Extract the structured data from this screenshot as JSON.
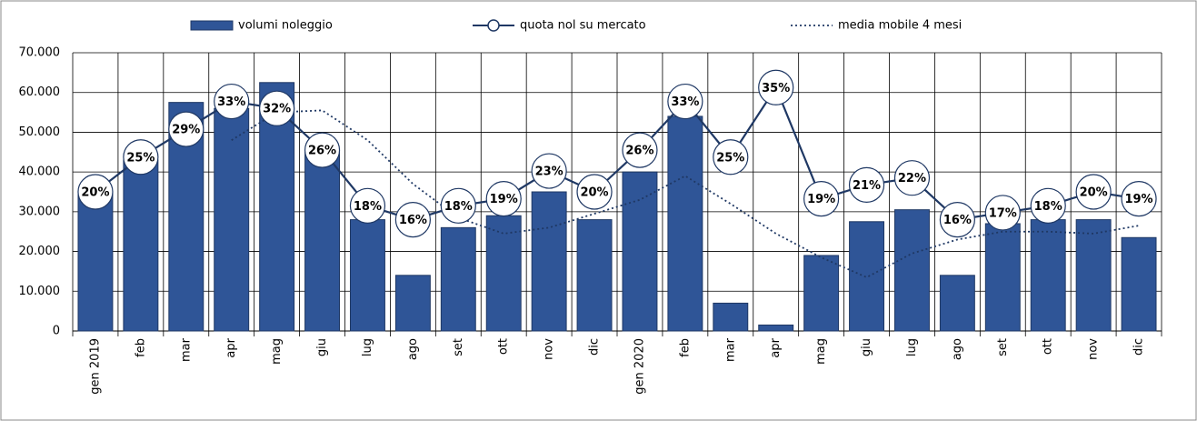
{
  "chart_data": {
    "type": "bar-line",
    "categories": [
      "gen 2019",
      "feb",
      "mar",
      "apr",
      "mag",
      "giu",
      "lug",
      "ago",
      "set",
      "ott",
      "nov",
      "dic",
      "gen 2020",
      "feb",
      "mar",
      "apr",
      "mag",
      "giu",
      "lug",
      "ago",
      "set",
      "ott",
      "nov",
      "dic"
    ],
    "series": [
      {
        "name": "volumi noleggio",
        "type": "bar",
        "color": "#2f5597",
        "values": [
          35000,
          43000,
          57500,
          56000,
          62500,
          45000,
          28000,
          14000,
          26000,
          29000,
          35000,
          28000,
          40000,
          54000,
          7000,
          1500,
          19000,
          27500,
          30500,
          14000,
          27000,
          28000,
          28000,
          23500
        ]
      },
      {
        "name": "quota nol su mercato",
        "type": "line",
        "axis": "y2",
        "color": "#1f3864",
        "values": [
          20,
          25,
          29,
          33,
          32,
          26,
          18,
          16,
          18,
          19,
          23,
          20,
          26,
          33,
          25,
          35,
          19,
          21,
          22,
          16,
          17,
          18,
          20,
          19
        ],
        "value_labels": [
          "20%",
          "25%",
          "29%",
          "33%",
          "32%",
          "26%",
          "18%",
          "16%",
          "18%",
          "19%",
          "23%",
          "20%",
          "26%",
          "33%",
          "25%",
          "35%",
          "19%",
          "21%",
          "22%",
          "16%",
          "17%",
          "18%",
          "20%",
          "19%"
        ]
      },
      {
        "name": "media mobile 4 mesi",
        "type": "dotted",
        "color": "#1f3864",
        "values": [
          null,
          null,
          null,
          48000,
          55000,
          55500,
          48000,
          37000,
          28500,
          24500,
          26000,
          29500,
          33000,
          39000,
          32000,
          24500,
          18500,
          13500,
          19500,
          23000,
          25000,
          25000,
          24500,
          26500
        ]
      }
    ],
    "ylim": [
      0,
      70000
    ],
    "yticks": [
      0,
      {
        "value": 10000,
        "label": "10.000"
      },
      {
        "value": 20000,
        "label": "20.000"
      },
      {
        "value": 30000,
        "label": "30.000"
      },
      {
        "value": 40000,
        "label": "40.000"
      },
      {
        "value": 50000,
        "label": "50.000"
      },
      {
        "value": 60000,
        "label": "60.000"
      },
      {
        "value": 70000,
        "label": "70.000"
      }
    ],
    "y2lim": [
      0,
      40
    ],
    "grid": true
  }
}
